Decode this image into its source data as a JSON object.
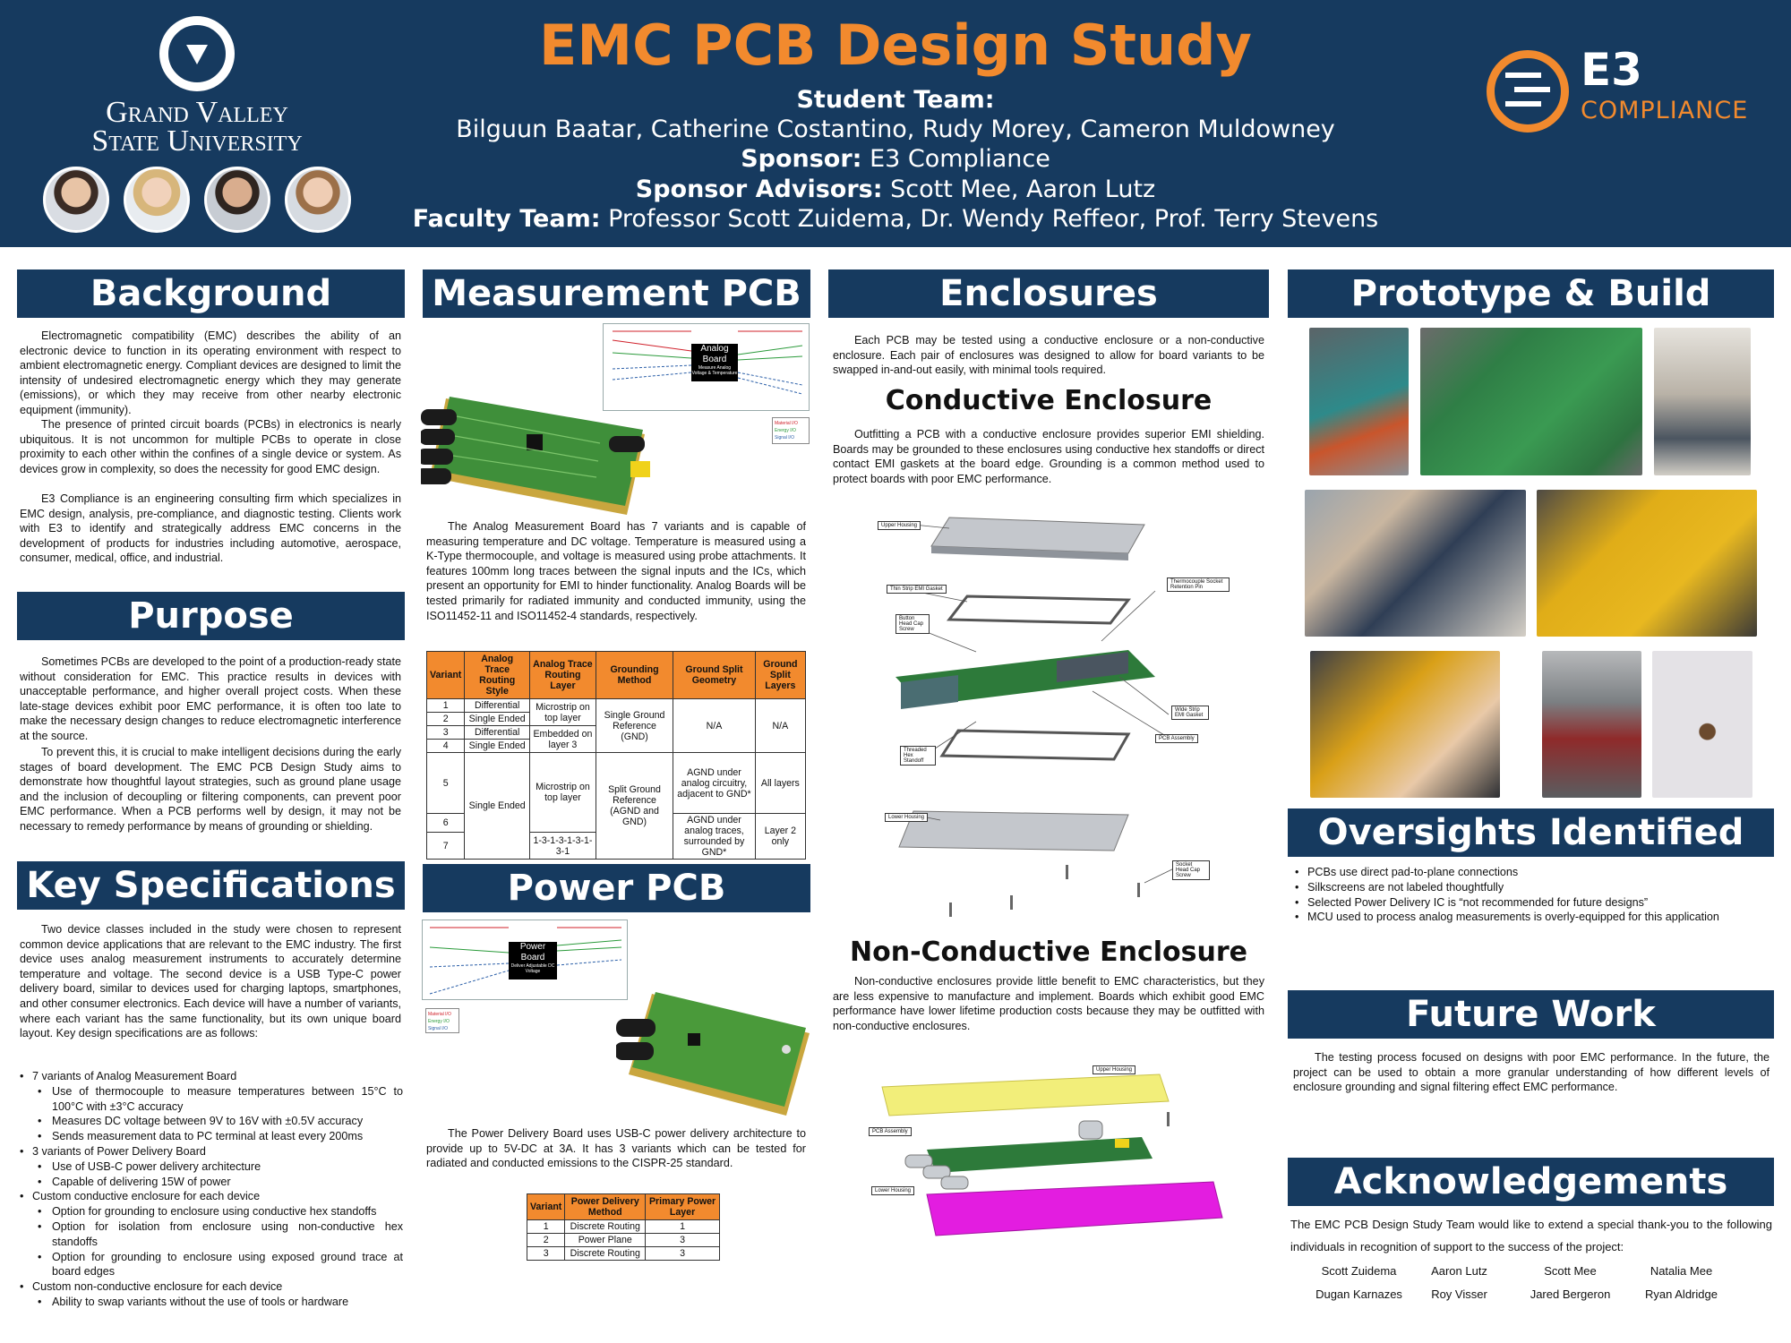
{
  "header": {
    "title": "EMC PCB Design Study",
    "student_team_label": "Student Team:",
    "student_team": "Bilguun Baatar, Catherine Costantino, Rudy Morey, Cameron Muldowney",
    "sponsor_label": "Sponsor:",
    "sponsor": "E3 Compliance",
    "advisors_label": "Sponsor Advisors:",
    "advisors": "Scott Mee, Aaron Lutz",
    "faculty_label": "Faculty Team:",
    "faculty": "Professor Scott Zuidema, Dr. Wendy Reffeor, Prof. Terry Stevens",
    "left_logo_line1": "Grand Valley",
    "left_logo_line2": "State University",
    "right_logo_text": "E3",
    "right_logo_sub": "COMPLIANCE"
  },
  "background": {
    "heading": "Background",
    "p1": "Electromagnetic compatibility (EMC) describes the ability of an electronic device to function in its operating environment with respect to ambient electromagnetic energy. Compliant devices are designed to limit the intensity of undesired electromagnetic energy which they may generate (emissions), or which they may receive from other nearby electronic equipment (immunity).",
    "p2": "The presence of printed circuit boards (PCBs) in electronics is nearly ubiquitous. It is not uncommon for multiple PCBs to operate in close proximity to each other within the confines of a single device or system. As devices grow in complexity, so does the necessity for good EMC design.",
    "p3": "E3 Compliance is an engineering consulting firm which specializes in EMC design, analysis, pre-compliance, and diagnostic testing. Clients work with E3 to identify and strategically address EMC concerns in the development of products for industries including automotive, aerospace, consumer, medical, office, and industrial."
  },
  "purpose": {
    "heading": "Purpose",
    "p1": "Sometimes PCBs are developed to the point of a production-ready state without consideration for EMC. This practice results in devices with unacceptable performance, and higher overall project costs. When these late-stage devices exhibit poor EMC performance, it is often too late to make the necessary design changes to reduce electromagnetic interference at the source.",
    "p2": "To prevent this, it is crucial to make intelligent decisions during the early stages of board development. The EMC PCB Design Study aims to demonstrate how thoughtful layout strategies, such as ground plane usage and the inclusion of decoupling or filtering components, can prevent poor EMC performance. When a PCB performs well by design, it may not be necessary to remedy performance by means of grounding or shielding."
  },
  "key_specs": {
    "heading": "Key Specifications",
    "p1": "Two device classes included in the study were chosen to represent common device applications that are relevant to the EMC industry. The first device uses analog measurement instruments to accurately determine temperature and voltage. The second device is a USB Type-C power delivery board, similar to devices used for charging laptops, smartphones, and other consumer electronics. Each device will have a number of variants, where each variant has the same functionality, but its own unique board layout. Key design specifications are as follows:",
    "b1": "7 variants of Analog Measurement Board",
    "b1a": "Use of thermocouple to measure temperatures between 15°C to 100°C with ±3°C accuracy",
    "b1b": "Measures DC voltage between 9V to 16V with ±0.5V accuracy",
    "b1c": "Sends measurement data to PC terminal at least every 200ms",
    "b2": "3 variants of Power Delivery Board",
    "b2a": "Use of USB-C power delivery architecture",
    "b2b": "Capable of delivering 15W of power",
    "b3": "Custom conductive enclosure for each device",
    "b3a": "Option for grounding to enclosure using conductive hex standoffs",
    "b3b": "Option for isolation from enclosure using non-conductive hex standoffs",
    "b3c": "Option for grounding to enclosure using exposed ground trace at board edges",
    "b4": "Custom non-conductive enclosure for each device",
    "b4a": "Ability to swap variants without the use of tools or hardware"
  },
  "measurement_pcb": {
    "heading": "Measurement PCB",
    "diagram_block": "Analog Board",
    "diagram_block_sub": "Measure Analog Voltage & Temperature",
    "legend": [
      "Material I/O",
      "Energy I/O",
      "Signal I/O"
    ],
    "diagram_left": [
      "Power Supply Connector",
      "K-Type Thermocouple",
      "Electrical Energy",
      "Electromagnetic Interference",
      "Analog Voltage"
    ],
    "diagram_right": [
      "USB Connector to PC",
      "Heat",
      "RF Emissions",
      "Measured Voltage",
      "Measured Temperature"
    ],
    "p1": "The Analog Measurement Board has 7 variants and is capable of measuring temperature and DC voltage. Temperature is measured using a K-Type thermocouple, and voltage is measured using probe attachments. It features 100mm long traces between the signal inputs and the ICs, which present an opportunity for EMI to hinder functionality. Analog Boards will be tested primarily for radiated immunity and conducted immunity, using the ISO11452-11 and ISO11452-4 standards, respectively.",
    "table_headers": [
      "Variant",
      "Analog Trace Routing Style",
      "Analog Trace Routing Layer",
      "Grounding Method",
      "Ground Split Geometry",
      "Ground Split Layers"
    ],
    "table": {
      "v1": "1",
      "v2": "2",
      "v3": "3",
      "v4": "4",
      "v5": "5",
      "v6": "6",
      "v7": "7",
      "style1": "Differential",
      "style2": "Single Ended",
      "style3": "Differential",
      "style4": "Single Ended",
      "style567": "Single Ended",
      "layer12": "Microstrip on top layer",
      "layer34": "Embedded on layer 3",
      "layer56": "Microstrip on top layer",
      "layer7": "1-3-1-3-1-3-1-3-1",
      "ground14": "Single Ground Reference (GND)",
      "ground57": "Split Ground Reference (AGND and GND)",
      "geom14": "N/A",
      "geom5": "AGND under analog circuitry, adjacent to GND*",
      "geom67": "AGND under analog traces, surrounded by GND*",
      "split14": "N/A",
      "split5": "All layers",
      "split67": "Layer 2 only"
    }
  },
  "power_pcb": {
    "heading": "Power PCB",
    "diagram_block": "Power Board",
    "diagram_block_sub": "Deliver Adjustable DC Voltage",
    "p1": "The Power Delivery Board uses USB-C power delivery architecture to provide up to 5V-DC at 3A. It has 3 variants which can be tested for radiated and conducted emissions to the CISPR-25 standard.",
    "table_headers": [
      "Variant",
      "Power Delivery Method",
      "Primary Power Layer"
    ],
    "table_rows": [
      [
        "1",
        "Discrete Routing",
        "1"
      ],
      [
        "2",
        "Power Plane",
        "3"
      ],
      [
        "3",
        "Discrete Routing",
        "3"
      ]
    ]
  },
  "enclosures": {
    "heading": "Enclosures",
    "p1": "Each PCB may be tested using a conductive enclosure or a non-conductive enclosure. Each pair of enclosures was designed to allow for board variants to be swapped in-and-out easily, with minimal tools required.",
    "conductive_heading": "Conductive Enclosure",
    "p2": "Outfitting a PCB with a conductive enclosure provides superior EMI shielding. Boards may be grounded to these enclosures using conductive hex standoffs or direct contact EMI gaskets at the board edge. Grounding is a common method used to protect boards with poor EMC performance.",
    "nonconductive_heading": "Non-Conductive Enclosure",
    "p3": "Non-conductive enclosures provide little benefit to EMC characteristics, but they are less expensive to manufacture and implement. Boards which exhibit good EMC performance have lower lifetime production costs because they may be outfitted with non-conductive enclosures.",
    "callouts": [
      "Upper Housing",
      "Thin Strip EMI Gasket",
      "Button Head Cap Screw",
      "Thermocouple Socket Retention Pin",
      "Threaded Hex Standoff",
      "Wide Strip EMI Gasket",
      "PCB Assembly",
      "Lower Housing",
      "Socket Head Cap Screw"
    ],
    "nc_callouts": [
      "Upper Housing",
      "PCB Assembly",
      "Lower Housing"
    ]
  },
  "prototype": {
    "heading": "Prototype & Build"
  },
  "oversights": {
    "heading": "Oversights Identified",
    "items": [
      "PCBs use direct pad-to-plane connections",
      "Silkscreens are not labeled thoughtfully",
      "Selected Power Delivery IC is “not recommended for future designs”",
      "MCU used to process analog measurements is overly-equipped for this application"
    ]
  },
  "future_work": {
    "heading": "Future Work",
    "p1": "The testing process focused on designs with poor EMC performance. In the future, the project can be used to obtain a more granular understanding of how different levels of enclosure grounding and signal filtering effect EMC performance."
  },
  "acknowledgements": {
    "heading": "Acknowledgements",
    "p1": "The EMC PCB Design Study Team would like to extend a special thank-you to the following individuals in recognition of support to the success of the project:",
    "names": [
      "Scott Zuidema",
      "Aaron Lutz",
      "Scott Mee",
      "Natalia Mee",
      "Dugan Karnazes",
      "Roy Visser",
      "Jared Bergeron",
      "Ryan Aldridge"
    ]
  },
  "colors": {
    "navy": "#163a5f",
    "orange": "#f28a2e",
    "pcb_green": "#3f8f3a",
    "enclosure_yellow": "#f2ee7a",
    "enclosure_magenta": "#e31de0"
  }
}
